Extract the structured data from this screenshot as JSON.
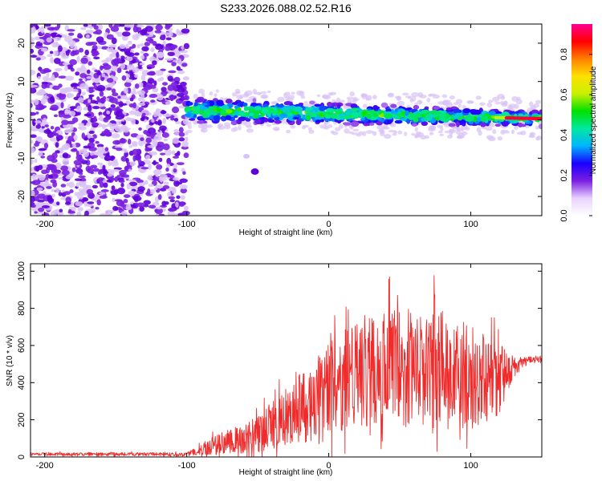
{
  "title": "S233.2026.088.02.52.R16",
  "colors": {
    "snr_line": "#ef2b2b",
    "scatter_low": "#d9c2f5",
    "scatter_mid": "#7a1fe0",
    "scatter_dense": "#5f00d8"
  },
  "chart_data": [
    {
      "type": "heatmap",
      "name": "spectrogram",
      "xlabel": "Height of straight line (km)",
      "ylabel": "Frequency (Hz)",
      "xlim": [
        -210,
        150
      ],
      "ylim": [
        -25,
        25
      ],
      "xticks": [
        -200,
        -100,
        0,
        100
      ],
      "yticks": [
        -20,
        -10,
        0,
        10,
        20
      ],
      "colorbar": {
        "label": "Normalized spectral amplitude",
        "range": [
          0,
          0.95
        ],
        "ticks": [
          "0.0",
          "0.2",
          "0.4",
          "0.6",
          "0.8"
        ],
        "stops": [
          "#ffffff",
          "#e8d2ff",
          "#7a1fe0",
          "#1a00ff",
          "#00b4ff",
          "#00e8a0",
          "#00e000",
          "#c8f000",
          "#ffe000",
          "#ff8000",
          "#ff0000",
          "#ff0090"
        ]
      },
      "regions": [
        {
          "desc": "broadband noise",
          "x_range": [
            -210,
            -100
          ],
          "freq_range": [
            -25,
            25
          ]
        },
        {
          "desc": "signal band",
          "x_range": [
            -100,
            150
          ],
          "freq_center_start": 2.5,
          "freq_center_end": 0.3,
          "half_width": 3.5
        },
        {
          "desc": "isolated blob",
          "x": -52,
          "freq": -13.5
        }
      ]
    },
    {
      "type": "line",
      "name": "snr",
      "xlabel": "Height of straight line (km)",
      "ylabel": "SNR (10 * v/v)",
      "xlim": [
        -210,
        150
      ],
      "ylim": [
        0,
        1040
      ],
      "xticks": [
        -200,
        -100,
        0,
        100
      ],
      "yticks": [
        0,
        200,
        400,
        600,
        800,
        1000
      ],
      "envelope": {
        "x": [
          -210,
          -100,
          -90,
          -60,
          -40,
          -20,
          0,
          20,
          40,
          60,
          80,
          100,
          120,
          130,
          140,
          150
        ],
        "mean": [
          15,
          15,
          45,
          100,
          170,
          260,
          360,
          450,
          480,
          490,
          470,
          430,
          420,
          480,
          520,
          525
        ],
        "spread": [
          8,
          10,
          40,
          80,
          130,
          190,
          250,
          300,
          330,
          330,
          320,
          280,
          200,
          60,
          20,
          15
        ]
      }
    }
  ]
}
